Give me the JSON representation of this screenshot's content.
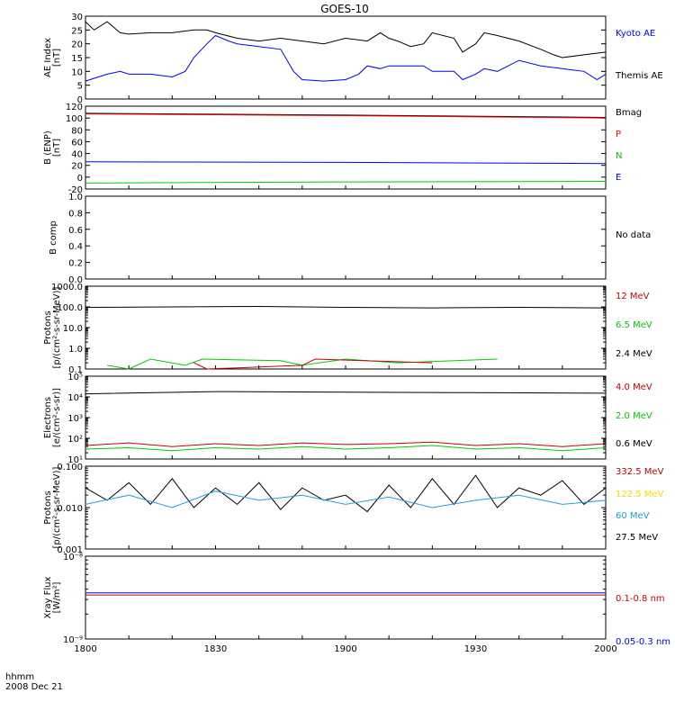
{
  "chart_data": {
    "title": "GOES-10",
    "type": "line",
    "x_range": [
      "1800",
      "2000"
    ],
    "x_ticks": [
      "1800",
      "1830",
      "1900",
      "1930",
      "2000"
    ],
    "x_axis_unit": "hhmm",
    "date": "2008 Dec 21",
    "panels": [
      {
        "id": "ae",
        "ylabel": [
          "AE Index",
          "[nT]"
        ],
        "scale": "linear",
        "ylim": [
          0,
          30
        ],
        "ticks": [
          {
            "v": 0,
            "l": "0"
          },
          {
            "v": 5,
            "l": "5"
          },
          {
            "v": 10,
            "l": "10"
          },
          {
            "v": 15,
            "l": "15"
          },
          {
            "v": 20,
            "l": "20"
          },
          {
            "v": 25,
            "l": "25"
          },
          {
            "v": 30,
            "l": "30"
          }
        ],
        "legend": [
          {
            "label": "Kyoto AE",
            "color": "#0000ff"
          },
          {
            "label": "Themis AE",
            "color": "#000000"
          }
        ],
        "series": [
          {
            "color": "#000000",
            "x": [
              "1800",
              "1802",
              "1805",
              "1808",
              "1810",
              "1815",
              "1820",
              "1825",
              "1828",
              "1830",
              "1835",
              "1840",
              "1845",
              "1850",
              "1855",
              "1900",
              "1905",
              "1908",
              "1910",
              "1912",
              "1915",
              "1918",
              "1920",
              "1925",
              "1927",
              "1930",
              "1932",
              "1935",
              "1940",
              "1945",
              "1948",
              "1950",
              "1955",
              "2000"
            ],
            "y": [
              28,
              25,
              28,
              24,
              23.5,
              24,
              24,
              25,
              25,
              24,
              22,
              21,
              22,
              21,
              20,
              22,
              21,
              24,
              22,
              21,
              19,
              20,
              24,
              22,
              17,
              20,
              24,
              23,
              21,
              18,
              16,
              15,
              16,
              17
            ]
          },
          {
            "color": "#0000ff",
            "x": [
              "1800",
              "1805",
              "1808",
              "1810",
              "1815",
              "1820",
              "1823",
              "1825",
              "1828",
              "1830",
              "1833",
              "1835",
              "1840",
              "1845",
              "1848",
              "1850",
              "1855",
              "1900",
              "1903",
              "1905",
              "1908",
              "1910",
              "1915",
              "1918",
              "1920",
              "1925",
              "1927",
              "1930",
              "1932",
              "1935",
              "1940",
              "1945",
              "1950",
              "1955",
              "1958",
              "2000"
            ],
            "y": [
              6.5,
              9,
              10,
              9,
              9,
              8,
              10,
              15,
              20,
              23,
              21,
              20,
              19,
              18,
              10,
              7,
              6.5,
              7,
              9,
              12,
              11,
              12,
              12,
              12,
              10,
              10,
              7,
              9,
              11,
              10,
              14,
              12,
              11,
              10,
              7,
              9
            ]
          }
        ]
      },
      {
        "id": "bfield",
        "ylabel": [
          "B (ENP)",
          "[nT]"
        ],
        "scale": "linear",
        "ylim": [
          -20,
          120
        ],
        "ticks": [
          {
            "v": -20,
            "l": "-20"
          },
          {
            "v": 0,
            "l": "0"
          },
          {
            "v": 20,
            "l": "20"
          },
          {
            "v": 40,
            "l": "40"
          },
          {
            "v": 60,
            "l": "60"
          },
          {
            "v": 80,
            "l": "80"
          },
          {
            "v": 100,
            "l": "100"
          },
          {
            "v": 120,
            "l": "120"
          }
        ],
        "legend": [
          {
            "label": "Bmag",
            "color": "#000000"
          },
          {
            "label": "P",
            "color": "#ff0000"
          },
          {
            "label": "N",
            "color": "#00cc00"
          },
          {
            "label": "E",
            "color": "#0000ff"
          }
        ],
        "series": [
          {
            "color": "#000000",
            "x": [
              "1800",
              "1900",
              "2000"
            ],
            "y": [
              108,
              105,
              101
            ]
          },
          {
            "color": "#ff0000",
            "x": [
              "1800",
              "1900",
              "2000"
            ],
            "y": [
              107,
              104,
              100
            ]
          },
          {
            "color": "#0000ff",
            "x": [
              "1800",
              "1900",
              "2000"
            ],
            "y": [
              26,
              25,
              23
            ]
          },
          {
            "color": "#00cc00",
            "x": [
              "1800",
              "1900",
              "2000"
            ],
            "y": [
              -10,
              -8,
              -7
            ]
          }
        ]
      },
      {
        "id": "bcomp",
        "ylabel": [
          "B comp"
        ],
        "scale": "linear",
        "ylim": [
          0,
          1
        ],
        "ticks": [
          {
            "v": 0,
            "l": "0.0"
          },
          {
            "v": 0.2,
            "l": "0.2"
          },
          {
            "v": 0.4,
            "l": "0.4"
          },
          {
            "v": 0.6,
            "l": "0.6"
          },
          {
            "v": 0.8,
            "l": "0.8"
          },
          {
            "v": 1.0,
            "l": "1.0"
          }
        ],
        "legend": [
          {
            "label": "No data",
            "color": "#000000"
          }
        ],
        "series": []
      },
      {
        "id": "protons_low",
        "ylabel": [
          "Protons",
          "[p/(cm²-s-sr-MeV)]"
        ],
        "scale": "log",
        "ylim": [
          0.1,
          1000
        ],
        "ticks": [
          {
            "v": 0.1,
            "l": "0.1"
          },
          {
            "v": 1,
            "l": "1.0"
          },
          {
            "v": 10,
            "l": "10.0"
          },
          {
            "v": 100,
            "l": "100.0"
          },
          {
            "v": 1000,
            "l": "1000.0"
          }
        ],
        "legend": [
          {
            "label": "12 MeV",
            "color": "#cc0000"
          },
          {
            "label": "6.5 MeV",
            "color": "#00cc00"
          },
          {
            "label": "2.4 MeV",
            "color": "#000000"
          }
        ],
        "series": [
          {
            "color": "#000000",
            "x": [
              "1800",
              "1820",
              "1840",
              "1900",
              "1920",
              "1940",
              "2000"
            ],
            "y": [
              95,
              100,
              105,
              95,
              90,
              95,
              90
            ]
          },
          {
            "color": "#00cc00",
            "x": [
              "1805",
              "1810",
              "1815",
              "1823",
              "1827",
              "1845",
              "1850",
              "1900",
              "1912",
              "1935"
            ],
            "y": [
              0.15,
              0.1,
              0.3,
              0.15,
              0.3,
              0.25,
              0.15,
              0.3,
              0.2,
              0.3
            ]
          },
          {
            "color": "#cc0000",
            "x": [
              "1825",
              "1828",
              "1850",
              "1853",
              "1920"
            ],
            "y": [
              0.2,
              0.1,
              0.15,
              0.3,
              0.2
            ]
          }
        ]
      },
      {
        "id": "electrons",
        "ylabel": [
          "Electrons",
          "[e/(cm²-s-sr)]"
        ],
        "scale": "log",
        "ylim": [
          10,
          100000
        ],
        "ticks": [
          {
            "v": 10,
            "l": "10¹"
          },
          {
            "v": 100,
            "l": "10²"
          },
          {
            "v": 1000,
            "l": "10³"
          },
          {
            "v": 10000,
            "l": "10⁴"
          },
          {
            "v": 100000,
            "l": "10⁵"
          }
        ],
        "legend": [
          {
            "label": "4.0 MeV",
            "color": "#cc0000"
          },
          {
            "label": "2.0 MeV",
            "color": "#00cc00"
          },
          {
            "label": "0.6 MeV",
            "color": "#000000"
          }
        ],
        "series": [
          {
            "color": "#000000",
            "x": [
              "1800",
              "1830",
              "1900",
              "1930",
              "2000"
            ],
            "y": [
              14000,
              18000,
              17000,
              16000,
              15000
            ]
          },
          {
            "color": "#cc0000",
            "x": [
              "1800",
              "1810",
              "1820",
              "1830",
              "1840",
              "1850",
              "1900",
              "1910",
              "1920",
              "1930",
              "1940",
              "1950",
              "2000"
            ],
            "y": [
              45,
              60,
              40,
              55,
              45,
              60,
              50,
              55,
              65,
              45,
              55,
              40,
              55
            ]
          },
          {
            "color": "#00cc00",
            "x": [
              "1800",
              "1810",
              "1820",
              "1830",
              "1840",
              "1850",
              "1900",
              "1910",
              "1920",
              "1930",
              "1940",
              "1950",
              "2000"
            ],
            "y": [
              30,
              35,
              25,
              35,
              30,
              40,
              30,
              35,
              45,
              30,
              35,
              25,
              35
            ]
          }
        ]
      },
      {
        "id": "protons_high",
        "ylabel": [
          "Protons",
          "[p/(cm²-s-sr-MeV)]"
        ],
        "scale": "log",
        "ylim": [
          0.001,
          0.1
        ],
        "ticks": [
          {
            "v": 0.001,
            "l": "0.001"
          },
          {
            "v": 0.01,
            "l": "0.010"
          },
          {
            "v": 0.1,
            "l": "0.100"
          }
        ],
        "legend": [
          {
            "label": "332.5 MeV",
            "color": "#cc0000"
          },
          {
            "label": "122.5 MeV",
            "color": "#ffd700"
          },
          {
            "label": "60 MeV",
            "color": "#1ea0dc"
          },
          {
            "label": "27.5 MeV",
            "color": "#000000"
          }
        ],
        "series": [
          {
            "color": "#000000",
            "x": [
              "1800",
              "1805",
              "1810",
              "1815",
              "1820",
              "1825",
              "1830",
              "1835",
              "1840",
              "1845",
              "1850",
              "1855",
              "1900",
              "1905",
              "1910",
              "1915",
              "1920",
              "1925",
              "1930",
              "1935",
              "1940",
              "1945",
              "1950",
              "1955",
              "2000"
            ],
            "y": [
              0.03,
              0.015,
              0.04,
              0.012,
              0.05,
              0.01,
              0.03,
              0.012,
              0.04,
              0.009,
              0.03,
              0.015,
              0.02,
              0.008,
              0.035,
              0.01,
              0.05,
              0.012,
              0.06,
              0.01,
              0.03,
              0.02,
              0.045,
              0.012,
              0.03
            ]
          },
          {
            "color": "#1ea0dc",
            "x": [
              "1800",
              "1810",
              "1820",
              "1830",
              "1840",
              "1850",
              "1900",
              "1910",
              "1920",
              "1930",
              "1940",
              "1950",
              "2000"
            ],
            "y": [
              0.012,
              0.02,
              0.01,
              0.025,
              0.015,
              0.02,
              0.012,
              0.018,
              0.01,
              0.015,
              0.02,
              0.012,
              0.015
            ]
          }
        ]
      },
      {
        "id": "xray",
        "ylabel": [
          "Xray Flux",
          "[W/m²]"
        ],
        "scale": "log",
        "ylim": [
          1e-09,
          1e-08
        ],
        "ticks": [
          {
            "v": 1e-09,
            "l": "10⁻⁹"
          },
          {
            "v": 1e-08,
            "l": "10⁻⁸"
          }
        ],
        "legend": [
          {
            "label": "0.1-0.8 nm",
            "color": "#cc0000"
          },
          {
            "label": "0.05-0.3 nm",
            "color": "#0000ff"
          }
        ],
        "series": [
          {
            "color": "#0000ff",
            "x": [
              "1800",
              "2000"
            ],
            "y": [
              3.6e-09,
              3.6e-09
            ]
          },
          {
            "color": "#cc0000",
            "x": [
              "1800",
              "2000"
            ],
            "y": [
              3.4e-09,
              3.4e-09
            ]
          }
        ]
      }
    ]
  }
}
